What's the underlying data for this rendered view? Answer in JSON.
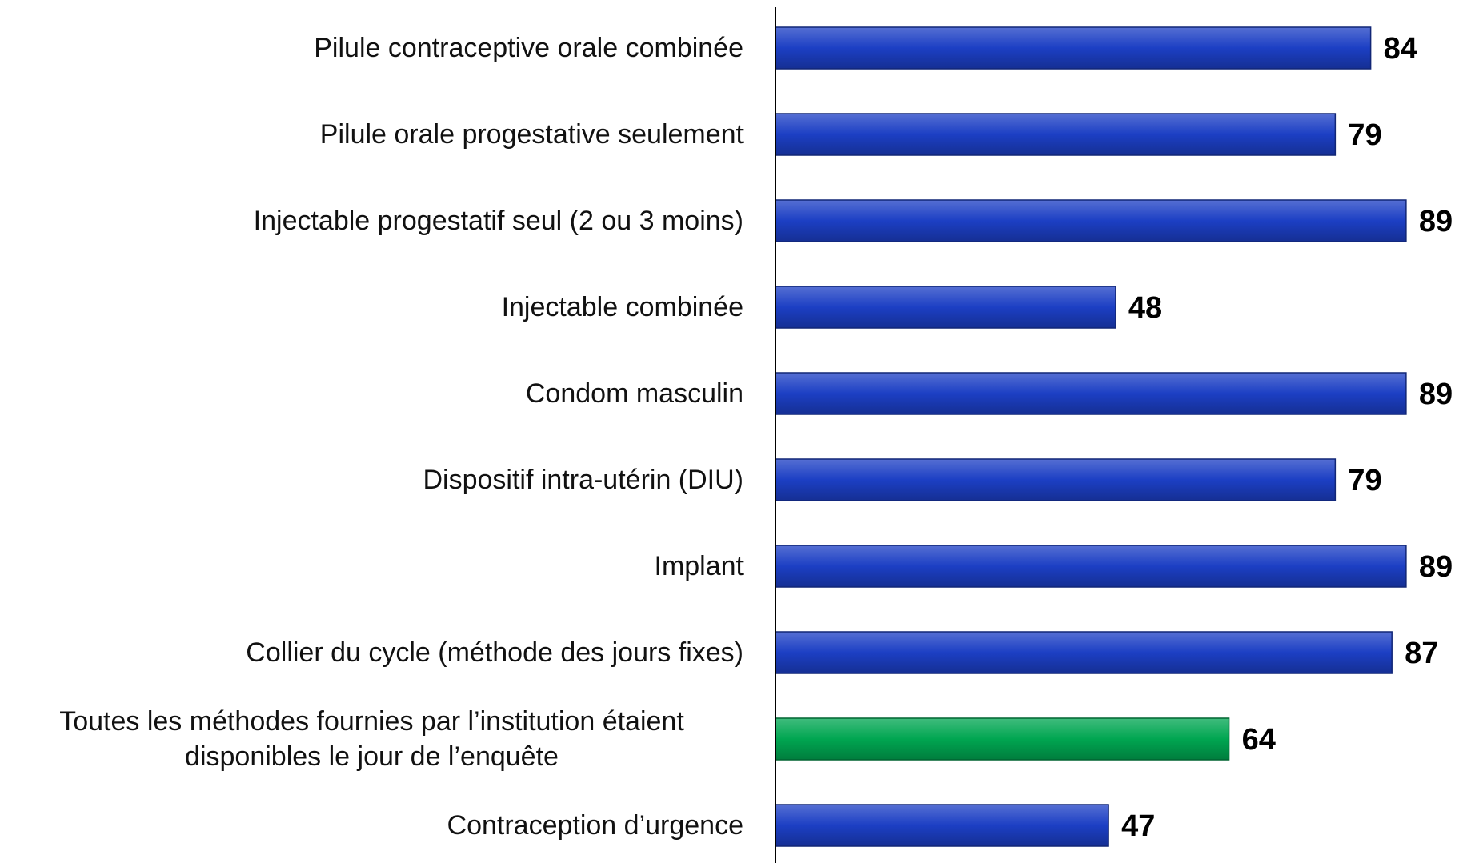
{
  "chart_data": {
    "type": "bar",
    "orientation": "horizontal",
    "categories": [
      "Pilule contraceptive orale combinée",
      "Pilule orale progestative seulement",
      "Injectable progestatif seul (2 ou 3 moins)",
      "Injectable combinée",
      "Condom masculin",
      "Dispositif intra-utérin (DIU)",
      "Implant",
      "Collier du cycle (méthode des jours fixes)",
      "Toutes les méthodes fournies par l’institution étaient disponibles le jour de l’enquête",
      "Contraception d’urgence"
    ],
    "values": [
      84,
      79,
      89,
      48,
      89,
      79,
      89,
      87,
      64,
      47
    ],
    "colors": [
      "#1c3fc4",
      "#1c3fc4",
      "#1c3fc4",
      "#1c3fc4",
      "#1c3fc4",
      "#1c3fc4",
      "#1c3fc4",
      "#1c3fc4",
      "#00a651",
      "#1c3fc4"
    ],
    "xlim": [
      0,
      95
    ]
  }
}
